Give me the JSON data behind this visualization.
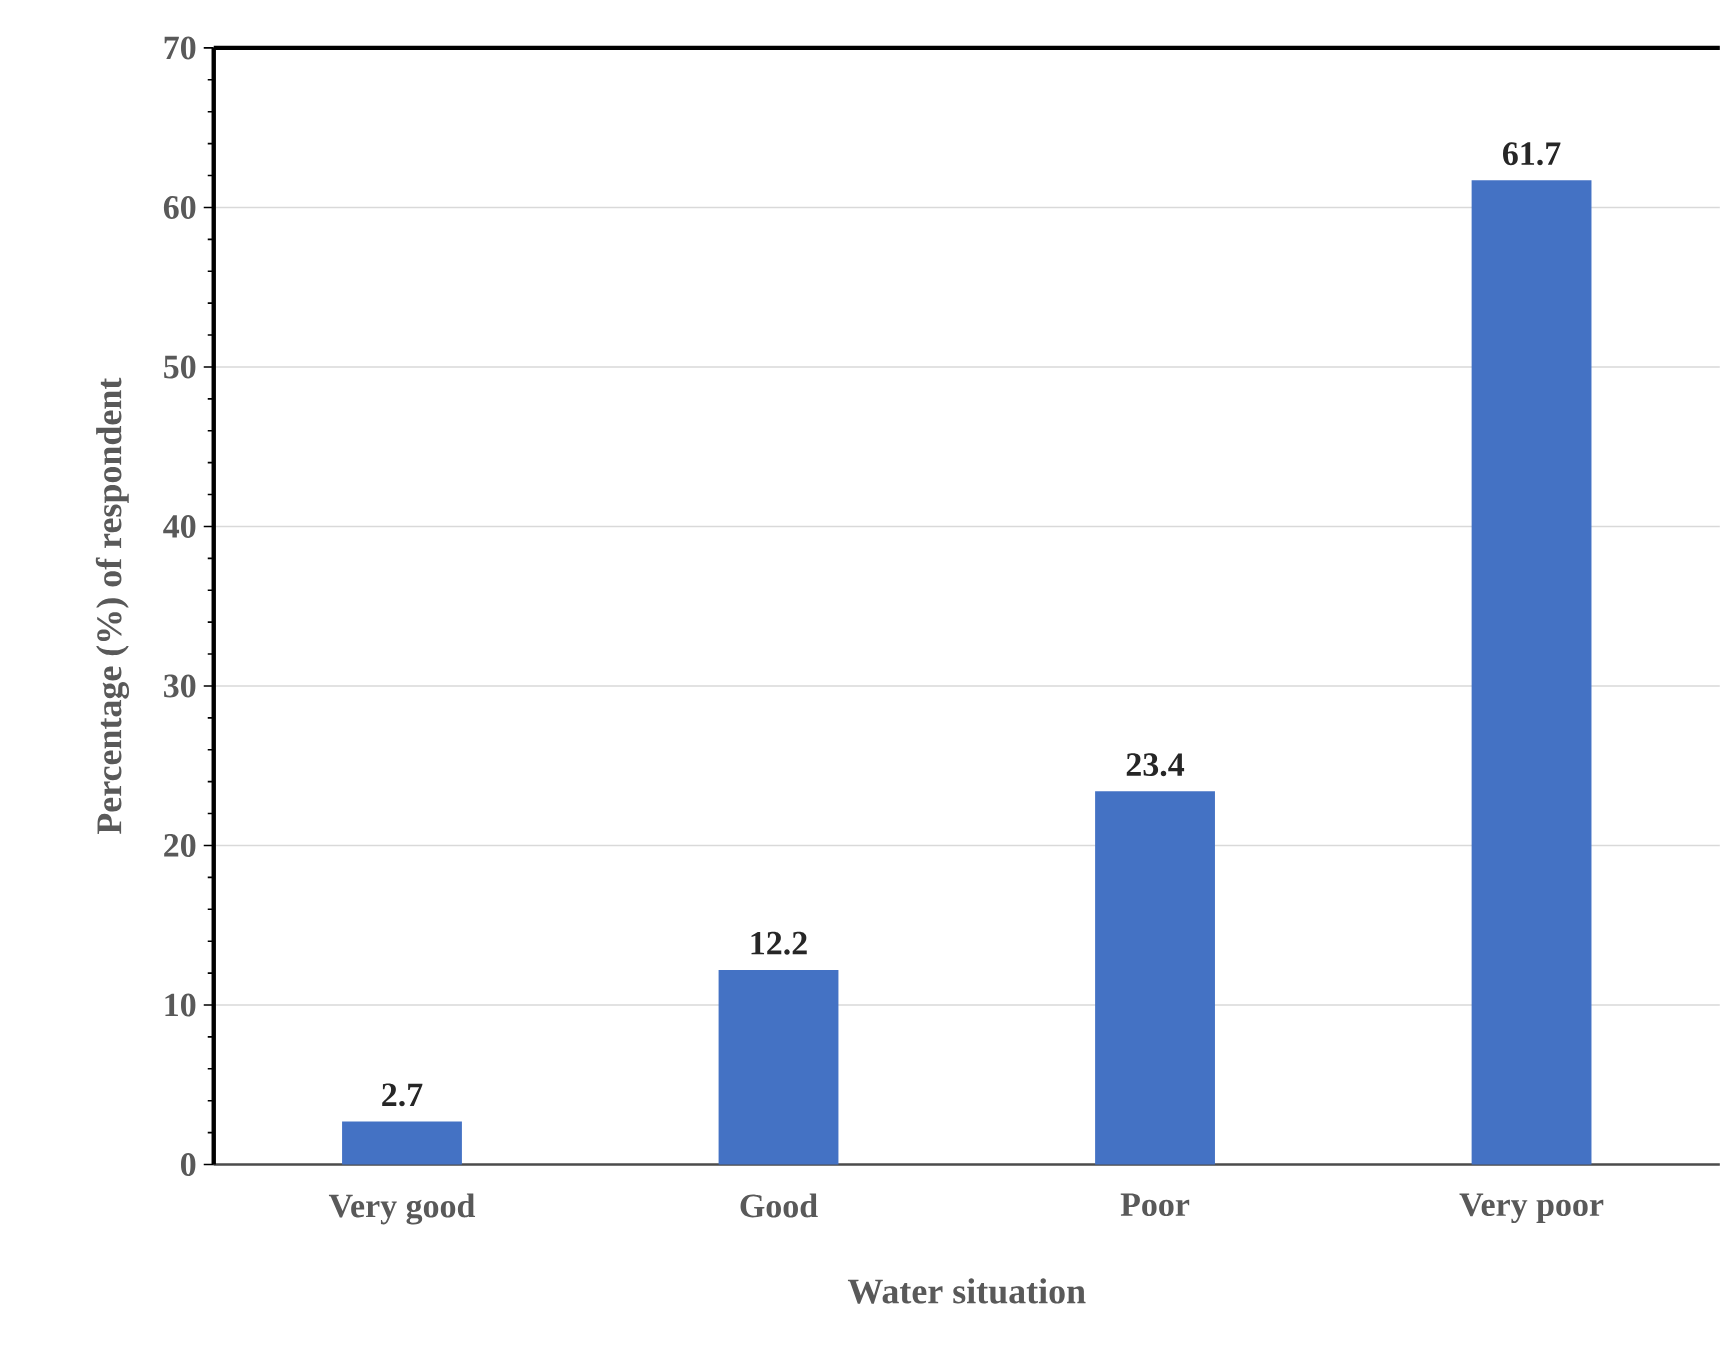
{
  "chart_data": {
    "type": "bar",
    "xlabel": "Water situation",
    "ylabel": "Percentage (%) of respondent",
    "categories": [
      "Very good",
      "Good",
      "Poor",
      "Very poor"
    ],
    "values": [
      2.7,
      12.2,
      23.4,
      61.7
    ],
    "color": "#4472c4",
    "ylim": [
      0,
      70
    ],
    "yticks": [
      0,
      10,
      20,
      30,
      40,
      50,
      60,
      70
    ],
    "grid": "y",
    "data_labels": true
  }
}
